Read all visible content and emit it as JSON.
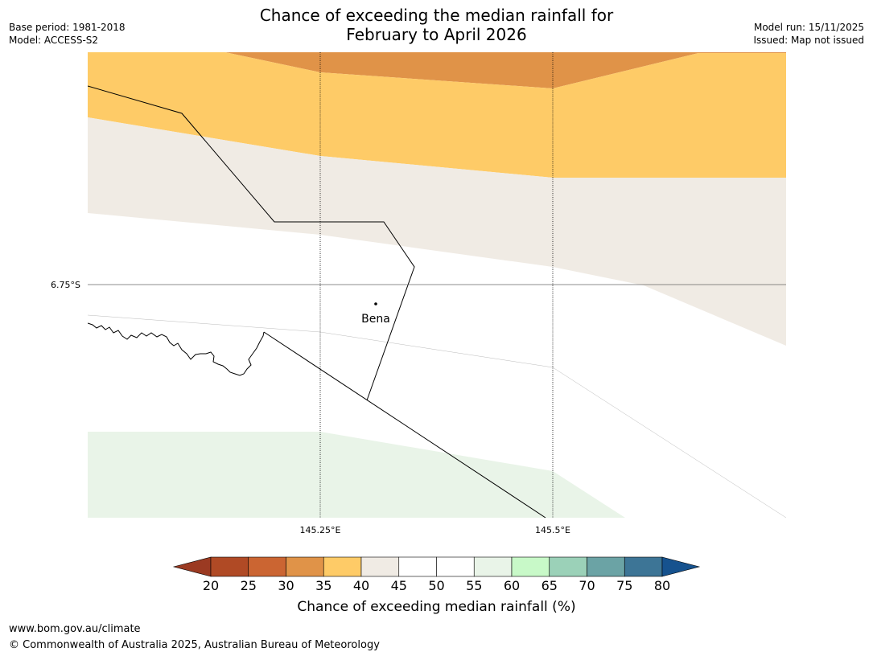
{
  "header": {
    "title_line1": "Chance of exceeding the median rainfall for",
    "title_line2": "February to April 2026",
    "base_period": "Base period: 1981-2018",
    "model": "Model: ACCESS-S2",
    "model_run": "Model run: 15/11/2025",
    "issued": "Issued: Map not issued"
  },
  "map": {
    "latitude_label": "6.75°S",
    "longitude_labels": [
      "145.25°E",
      "145.5°E"
    ],
    "place_label": "Bena"
  },
  "colorbar": {
    "title": "Chance of exceeding median rainfall (%)",
    "ticks": [
      "20",
      "25",
      "30",
      "35",
      "40",
      "45",
      "50",
      "55",
      "60",
      "65",
      "70",
      "75",
      "80"
    ],
    "colors": [
      "#9b3a22",
      "#b04a25",
      "#cb6532",
      "#e09348",
      "#fecb67",
      "#f0ebe4",
      "#ffffff",
      "#ffffff",
      "#e9f4e8",
      "#c8f9c8",
      "#9bd1b8",
      "#6ba3a5",
      "#3d7596",
      "#16528e"
    ]
  },
  "footer": {
    "url": "www.bom.gov.au/climate",
    "copyright": "© Commonwealth of Australia 2025, Australian Bureau of Meteorology"
  }
}
